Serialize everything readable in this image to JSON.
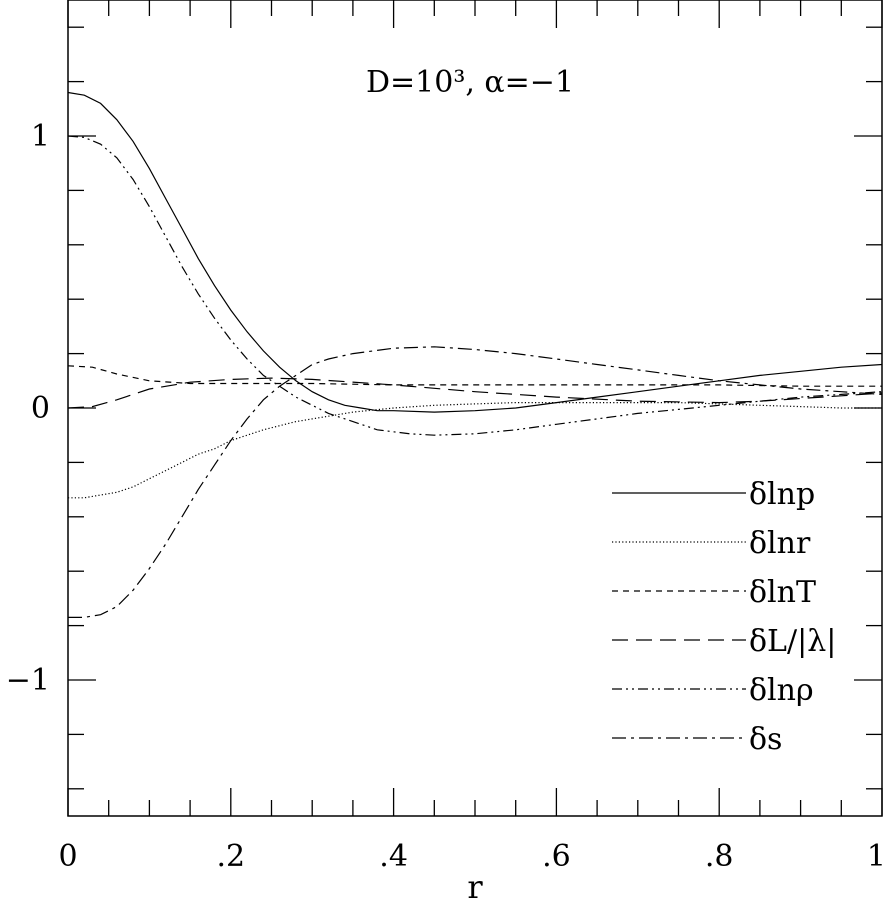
{
  "chart_data": {
    "type": "line",
    "title": "D=10³,  α=−1",
    "xlabel": "r",
    "ylabel": "",
    "xlim": [
      0,
      1
    ],
    "ylim": [
      -1.5,
      1.5
    ],
    "x_ticks": [
      {
        "value": 0,
        "label": "0"
      },
      {
        "value": 0.2,
        "label": ".2"
      },
      {
        "value": 0.4,
        "label": ".4"
      },
      {
        "value": 0.6,
        "label": ".6"
      },
      {
        "value": 0.8,
        "label": ".8"
      },
      {
        "value": 1,
        "label": "1"
      }
    ],
    "y_ticks": [
      {
        "value": 1,
        "label": "1"
      },
      {
        "value": 0,
        "label": "0"
      },
      {
        "value": -1,
        "label": "−1"
      }
    ],
    "grid": false,
    "legend_position": "bottom-right",
    "series": [
      {
        "name": "δlnp",
        "dash": "solid",
        "points": [
          [
            0,
            1.16
          ],
          [
            0.02,
            1.15
          ],
          [
            0.04,
            1.12
          ],
          [
            0.06,
            1.06
          ],
          [
            0.08,
            0.98
          ],
          [
            0.1,
            0.88
          ],
          [
            0.12,
            0.77
          ],
          [
            0.14,
            0.66
          ],
          [
            0.16,
            0.55
          ],
          [
            0.18,
            0.45
          ],
          [
            0.2,
            0.36
          ],
          [
            0.22,
            0.28
          ],
          [
            0.24,
            0.21
          ],
          [
            0.26,
            0.15
          ],
          [
            0.28,
            0.1
          ],
          [
            0.3,
            0.06
          ],
          [
            0.32,
            0.03
          ],
          [
            0.34,
            0.01
          ],
          [
            0.36,
            0.0
          ],
          [
            0.38,
            -0.01
          ],
          [
            0.4,
            -0.01
          ],
          [
            0.45,
            -0.015
          ],
          [
            0.5,
            -0.01
          ],
          [
            0.55,
            0.0
          ],
          [
            0.6,
            0.02
          ],
          [
            0.65,
            0.04
          ],
          [
            0.7,
            0.06
          ],
          [
            0.75,
            0.08
          ],
          [
            0.8,
            0.1
          ],
          [
            0.85,
            0.12
          ],
          [
            0.9,
            0.135
          ],
          [
            0.95,
            0.15
          ],
          [
            1.0,
            0.16
          ]
        ]
      },
      {
        "name": "δlnr",
        "dash": "dotted",
        "points": [
          [
            0,
            -0.33
          ],
          [
            0.02,
            -0.33
          ],
          [
            0.04,
            -0.32
          ],
          [
            0.06,
            -0.31
          ],
          [
            0.08,
            -0.29
          ],
          [
            0.1,
            -0.26
          ],
          [
            0.12,
            -0.23
          ],
          [
            0.14,
            -0.2
          ],
          [
            0.16,
            -0.17
          ],
          [
            0.18,
            -0.15
          ],
          [
            0.2,
            -0.12
          ],
          [
            0.22,
            -0.1
          ],
          [
            0.24,
            -0.08
          ],
          [
            0.26,
            -0.065
          ],
          [
            0.28,
            -0.05
          ],
          [
            0.3,
            -0.04
          ],
          [
            0.32,
            -0.03
          ],
          [
            0.35,
            -0.015
          ],
          [
            0.4,
            0.0
          ],
          [
            0.45,
            0.01
          ],
          [
            0.5,
            0.015
          ],
          [
            0.55,
            0.02
          ],
          [
            0.6,
            0.02
          ],
          [
            0.65,
            0.02
          ],
          [
            0.7,
            0.02
          ],
          [
            0.75,
            0.02
          ],
          [
            0.8,
            0.015
          ],
          [
            0.85,
            0.01
          ],
          [
            0.9,
            0.005
          ],
          [
            0.95,
            0.0
          ],
          [
            1.0,
            0.0
          ]
        ]
      },
      {
        "name": "δlnT",
        "dash": "short-dash",
        "points": [
          [
            0,
            0.155
          ],
          [
            0.03,
            0.15
          ],
          [
            0.06,
            0.125
          ],
          [
            0.1,
            0.1
          ],
          [
            0.15,
            0.09
          ],
          [
            0.2,
            0.09
          ],
          [
            0.3,
            0.09
          ],
          [
            0.4,
            0.085
          ],
          [
            0.5,
            0.085
          ],
          [
            0.6,
            0.085
          ],
          [
            0.7,
            0.085
          ],
          [
            0.8,
            0.085
          ],
          [
            0.9,
            0.08
          ],
          [
            1.0,
            0.08
          ]
        ]
      },
      {
        "name": "δL/|λ|",
        "dash": "long-dash",
        "points": [
          [
            0,
            0.0
          ],
          [
            0.03,
            0.005
          ],
          [
            0.06,
            0.03
          ],
          [
            0.1,
            0.07
          ],
          [
            0.15,
            0.095
          ],
          [
            0.2,
            0.105
          ],
          [
            0.25,
            0.11
          ],
          [
            0.3,
            0.105
          ],
          [
            0.4,
            0.085
          ],
          [
            0.5,
            0.06
          ],
          [
            0.6,
            0.04
          ],
          [
            0.7,
            0.025
          ],
          [
            0.8,
            0.02
          ],
          [
            0.85,
            0.025
          ],
          [
            0.9,
            0.035
          ],
          [
            0.95,
            0.045
          ],
          [
            1.0,
            0.055
          ]
        ]
      },
      {
        "name": "δlnρ",
        "dash": "dash-dot-dot",
        "points": [
          [
            0,
            1.0
          ],
          [
            0.02,
            0.995
          ],
          [
            0.04,
            0.97
          ],
          [
            0.06,
            0.92
          ],
          [
            0.08,
            0.84
          ],
          [
            0.1,
            0.74
          ],
          [
            0.12,
            0.63
          ],
          [
            0.14,
            0.52
          ],
          [
            0.16,
            0.42
          ],
          [
            0.18,
            0.33
          ],
          [
            0.2,
            0.25
          ],
          [
            0.22,
            0.18
          ],
          [
            0.24,
            0.12
          ],
          [
            0.26,
            0.08
          ],
          [
            0.28,
            0.04
          ],
          [
            0.3,
            0.01
          ],
          [
            0.32,
            -0.02
          ],
          [
            0.35,
            -0.05
          ],
          [
            0.38,
            -0.08
          ],
          [
            0.42,
            -0.095
          ],
          [
            0.45,
            -0.1
          ],
          [
            0.5,
            -0.095
          ],
          [
            0.55,
            -0.08
          ],
          [
            0.6,
            -0.06
          ],
          [
            0.65,
            -0.04
          ],
          [
            0.7,
            -0.02
          ],
          [
            0.75,
            -0.005
          ],
          [
            0.8,
            0.01
          ],
          [
            0.85,
            0.025
          ],
          [
            0.9,
            0.04
          ],
          [
            0.95,
            0.05
          ],
          [
            1.0,
            0.06
          ]
        ]
      },
      {
        "name": "δs",
        "dash": "dash-dot",
        "points": [
          [
            0,
            -0.77
          ],
          [
            0.02,
            -0.77
          ],
          [
            0.04,
            -0.76
          ],
          [
            0.06,
            -0.73
          ],
          [
            0.08,
            -0.67
          ],
          [
            0.1,
            -0.59
          ],
          [
            0.12,
            -0.5
          ],
          [
            0.14,
            -0.4
          ],
          [
            0.16,
            -0.3
          ],
          [
            0.18,
            -0.21
          ],
          [
            0.2,
            -0.12
          ],
          [
            0.22,
            -0.04
          ],
          [
            0.24,
            0.03
          ],
          [
            0.26,
            0.08
          ],
          [
            0.28,
            0.12
          ],
          [
            0.3,
            0.16
          ],
          [
            0.32,
            0.18
          ],
          [
            0.35,
            0.2
          ],
          [
            0.4,
            0.22
          ],
          [
            0.45,
            0.225
          ],
          [
            0.5,
            0.215
          ],
          [
            0.55,
            0.2
          ],
          [
            0.6,
            0.18
          ],
          [
            0.65,
            0.16
          ],
          [
            0.7,
            0.14
          ],
          [
            0.75,
            0.12
          ],
          [
            0.8,
            0.1
          ],
          [
            0.85,
            0.085
          ],
          [
            0.9,
            0.07
          ],
          [
            0.95,
            0.06
          ],
          [
            1.0,
            0.05
          ]
        ]
      }
    ]
  }
}
